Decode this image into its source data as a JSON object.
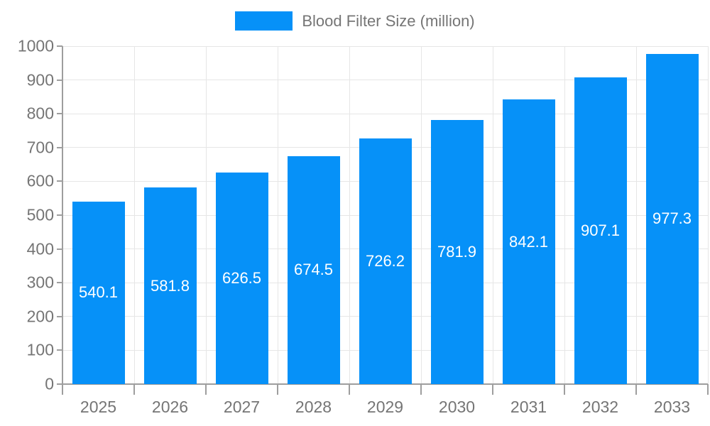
{
  "legend": {
    "label": "Blood Filter Size (million)"
  },
  "colors": {
    "bar": "#0691f8",
    "axis": "#9e9e9e",
    "grid": "#e6e6e6",
    "text": "#757575",
    "value_label": "#ffffff",
    "background": "#ffffff"
  },
  "chart_data": {
    "type": "bar",
    "title": "Blood Filter Size (million)",
    "categories": [
      "2025",
      "2026",
      "2027",
      "2028",
      "2029",
      "2030",
      "2031",
      "2032",
      "2033"
    ],
    "series": [
      {
        "name": "Blood Filter Size (million)",
        "values": [
          540.1,
          581.8,
          626.5,
          674.5,
          726.2,
          781.9,
          842.1,
          907.1,
          977.3
        ]
      }
    ],
    "xlabel": "",
    "ylabel": "",
    "ylim": [
      0,
      1000
    ],
    "ytick_step": 100,
    "ytick_labels": [
      "0",
      "100",
      "200",
      "300",
      "400",
      "500",
      "600",
      "700",
      "800",
      "900",
      "1000"
    ],
    "grid": true,
    "legend_position": "top-center",
    "value_labels_position": "inside-center"
  }
}
